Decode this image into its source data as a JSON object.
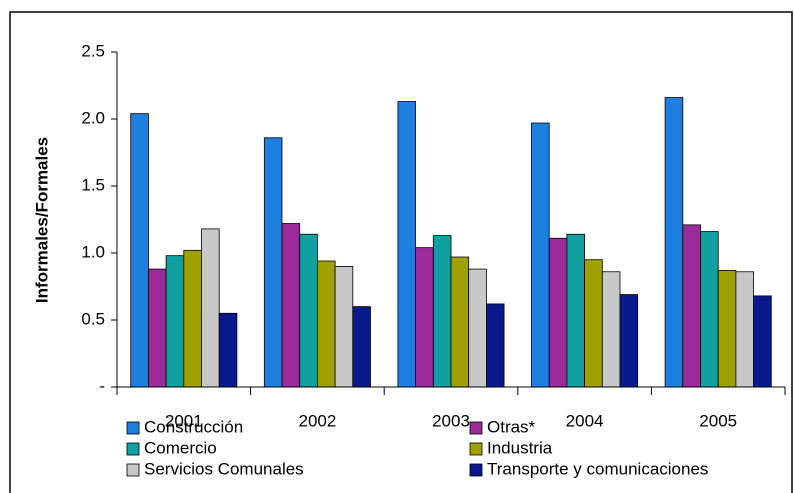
{
  "chart_data": {
    "type": "bar",
    "y_label": "Informales/Formales",
    "categories": [
      "2001",
      "2002",
      "2003",
      "2004",
      "2005"
    ],
    "series": [
      {
        "name": "Construcción",
        "color": "#1f7fe0",
        "values": [
          2.04,
          1.86,
          2.13,
          1.97,
          2.16
        ]
      },
      {
        "name": "Otras*",
        "color": "#9b2a9b",
        "values": [
          0.88,
          1.22,
          1.04,
          1.11,
          1.21
        ]
      },
      {
        "name": "Comercio",
        "color": "#10a0a0",
        "values": [
          0.98,
          1.14,
          1.13,
          1.14,
          1.16
        ]
      },
      {
        "name": "Industria",
        "color": "#a0a000",
        "values": [
          1.02,
          0.94,
          0.97,
          0.95,
          0.87
        ]
      },
      {
        "name": "Servicios Comunales",
        "color": "#c8c8c8",
        "values": [
          1.18,
          0.9,
          0.88,
          0.86,
          0.86
        ]
      },
      {
        "name": "Transporte y comunicaciones",
        "color": "#0a1a8c",
        "values": [
          0.55,
          0.6,
          0.62,
          0.69,
          0.68
        ]
      }
    ],
    "ylim": [
      0,
      2.5
    ],
    "yticks": [
      {
        "value": 0,
        "label": "-"
      },
      0.5,
      {
        "value": 1,
        "label": "1.0"
      },
      1.5,
      {
        "value": 2,
        "label": "2.0"
      },
      2.5
    ],
    "legend": "bottom"
  }
}
